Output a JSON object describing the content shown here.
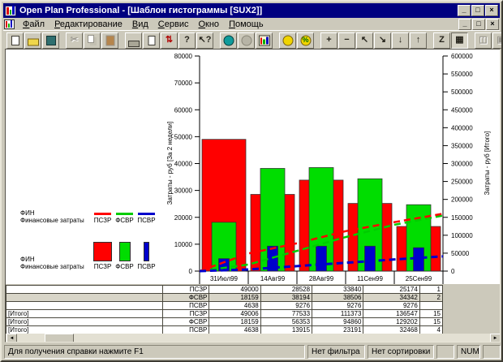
{
  "window": {
    "title": "Open Plan Professional - [Шаблон гистограммы [SUX2]]",
    "controls": {
      "minimize": "_",
      "restore": "□",
      "close": "×"
    }
  },
  "menu": {
    "items": [
      "Файл",
      "Редактирование",
      "Вид",
      "Сервис",
      "Окно",
      "Помощь"
    ]
  },
  "toolbar": {
    "buttons": [
      {
        "name": "new-file",
        "shape": "new"
      },
      {
        "name": "open-file",
        "shape": "open"
      },
      {
        "name": "save-file",
        "shape": "save"
      },
      {
        "name": "cut",
        "glyph": "✂",
        "disabled": true,
        "gap": true
      },
      {
        "name": "copy",
        "shape": "copy",
        "disabled": true
      },
      {
        "name": "paste",
        "shape": "paste",
        "disabled": true
      },
      {
        "name": "print",
        "shape": "print",
        "gap": true
      },
      {
        "name": "print-preview",
        "shape": "preview"
      },
      {
        "name": "levels",
        "glyph": "⇅",
        "color": "#b00000"
      },
      {
        "name": "help",
        "glyph": "?"
      },
      {
        "name": "context-help",
        "glyph": "↖?"
      },
      {
        "name": "time-analysis",
        "shape": "clock",
        "gap": true
      },
      {
        "name": "resource-analysis",
        "shape": "resource",
        "disabled": true
      },
      {
        "name": "histogram-view",
        "shape": "histo"
      },
      {
        "name": "cost",
        "shape": "coin",
        "gap": true
      },
      {
        "name": "percent-complete",
        "shape": "coin",
        "glyph": "%",
        "color": "#007000"
      },
      {
        "name": "add-row",
        "glyph": "+",
        "gap": true
      },
      {
        "name": "remove-row",
        "glyph": "−"
      },
      {
        "name": "promote",
        "glyph": "↖"
      },
      {
        "name": "demote",
        "glyph": "↘"
      },
      {
        "name": "move-down",
        "glyph": "↓"
      },
      {
        "name": "move-up",
        "glyph": "↑"
      },
      {
        "name": "zoom-mode",
        "glyph": "Z",
        "gap": true
      },
      {
        "name": "table-view",
        "glyph": "▦",
        "pressed": true
      },
      {
        "name": "tile-windows",
        "glyph": "◫",
        "disabled": true,
        "gap": true
      },
      {
        "name": "cascade-windows",
        "glyph": "▣",
        "disabled": true
      }
    ]
  },
  "legend": {
    "groups": [
      {
        "title": "ФИН",
        "subtitle": "Финансовые затраты",
        "swatch": "line",
        "items": [
          {
            "label": "ПСЗР",
            "color": "#ff0000"
          },
          {
            "label": "ФСВР",
            "color": "#00cc00"
          },
          {
            "label": "ПСВР",
            "color": "#0000cc"
          }
        ]
      },
      {
        "title": "ФИН",
        "subtitle": "Финансовые затраты",
        "swatch": "bar",
        "items": [
          {
            "label": "ПСЗР",
            "color": "#ff0000",
            "width": 23
          },
          {
            "label": "ФСВР",
            "color": "#00dd00",
            "width": 14
          },
          {
            "label": "ПСВР",
            "color": "#0000cc",
            "width": 7
          }
        ]
      }
    ]
  },
  "chart_data": {
    "type": "bar",
    "title": "Шаблон гистограммы [SUX2]",
    "categories": [
      "31Июл99",
      "14Авг99",
      "28Авг99",
      "11Сен99",
      "25Сен99"
    ],
    "left_axis": {
      "label": "Затраты - руб [За 2 недели]",
      "min": 0,
      "max": 80000,
      "step": 10000
    },
    "right_axis": {
      "label": "Затраты - руб [Итого]",
      "min": 0,
      "max": 600000,
      "step": 50000
    },
    "bar_series": [
      {
        "name": "ПСЗР",
        "color": "#ff0000",
        "axis": "left",
        "values": [
          49000,
          28528,
          33840,
          25174,
          16600
        ]
      },
      {
        "name": "ФСВР",
        "color": "#00dd00",
        "axis": "left",
        "values": [
          18159,
          38194,
          38506,
          34342,
          24700
        ]
      },
      {
        "name": "ПСВР",
        "color": "#0000cc",
        "axis": "left",
        "values": [
          4638,
          9276,
          9276,
          9276,
          8700
        ]
      }
    ],
    "line_series": [
      {
        "name": "ФСВР [Итого]",
        "color": "#00cc00",
        "axis": "right",
        "values": [
          18159,
          56353,
          94860,
          129202,
          155000
        ]
      },
      {
        "name": "ПСЗР [Итого]",
        "color": "#ff0000",
        "axis": "right",
        "values": [
          49006,
          77533,
          111373,
          136547,
          160000
        ]
      },
      {
        "name": "ПСВР [Итого]",
        "color": "#0000cc",
        "axis": "right",
        "values": [
          4638,
          13915,
          23191,
          32468,
          41000
        ]
      }
    ],
    "legend_position": "left",
    "grid": false
  },
  "table": {
    "rows": [
      {
        "group": "",
        "code": "ПСЗР",
        "values": [
          "49000",
          "28528",
          "33840",
          "25174",
          "1"
        ],
        "highlight": false
      },
      {
        "group": "",
        "code": "ФСВР",
        "values": [
          "18159",
          "38194",
          "38506",
          "34342",
          "2"
        ],
        "highlight": true
      },
      {
        "group": "",
        "code": "ПСВР",
        "values": [
          "4638",
          "9276",
          "9276",
          "9276",
          ""
        ],
        "highlight": false
      },
      {
        "group": "[Итого]",
        "code": "ПСЗР",
        "values": [
          "49006",
          "77533",
          "111373",
          "136547",
          "15"
        ],
        "highlight": false
      },
      {
        "group": "[Итого]",
        "code": "ФСВР",
        "values": [
          "18159",
          "56353",
          "94860",
          "129202",
          "15"
        ],
        "highlight": false
      },
      {
        "group": "[Итого]",
        "code": "ПСВР",
        "values": [
          "4638",
          "13915",
          "23191",
          "32468",
          "4"
        ],
        "highlight": false
      }
    ]
  },
  "hscrollbar": {
    "left_arrow": "◄",
    "right_arrow": "►"
  },
  "status": {
    "message": "Для получения справки нажмите F1",
    "filter": "Нет фильтра",
    "sort": "Нет сортировки",
    "keyboard": "NUM"
  }
}
